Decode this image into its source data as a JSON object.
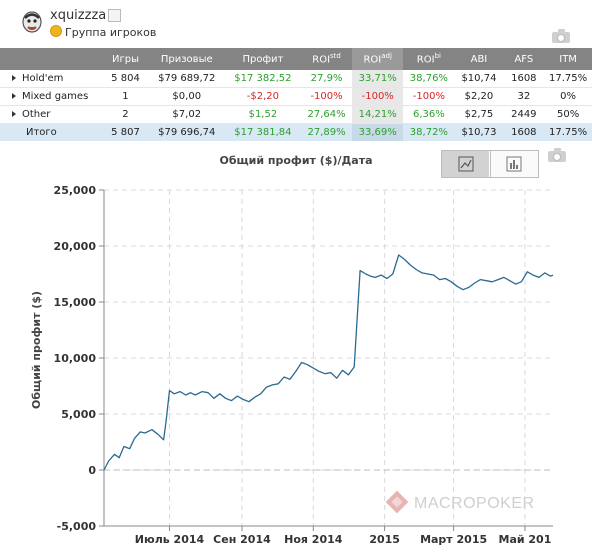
{
  "user": {
    "name": "xquizzza",
    "group_label": "Группа игроков"
  },
  "table": {
    "headers": [
      "",
      "Игры",
      "Призовые",
      "Профит",
      "ROI",
      "ROI",
      "ROI",
      "ABI",
      "AFS",
      "ITM"
    ],
    "roi_sups": [
      "std",
      "adj",
      "bi"
    ],
    "rows": [
      {
        "name": "Hold'em",
        "cells": [
          "5 804",
          "$79 689,72",
          "$17 382,52",
          "27,9%",
          "33,71%",
          "38,76%",
          "$10,74",
          "1608",
          "17.75%"
        ]
      },
      {
        "name": "Mixed games",
        "cells": [
          "1",
          "$0,00",
          "-$2,20",
          "-100%",
          "-100%",
          "-100%",
          "$2,20",
          "32",
          "0%"
        ]
      },
      {
        "name": "Other",
        "cells": [
          "2",
          "$7,02",
          "$1,52",
          "27,64%",
          "14,21%",
          "6,36%",
          "$2,75",
          "2449",
          "50%"
        ]
      }
    ],
    "total": {
      "name": "Итого",
      "cells": [
        "5 807",
        "$79 696,74",
        "$17 381,84",
        "27,89%",
        "33,69%",
        "38,72%",
        "$10,73",
        "1608",
        "17.75%"
      ]
    }
  },
  "colors": {
    "positive": "#2ca02c",
    "negative": "#d62728",
    "line": "#2b6a8f",
    "header_bg": "#848484"
  },
  "chart_data": {
    "type": "line",
    "title": "Общий профит ($)/Дата",
    "ylabel": "Общий профит ($)",
    "xlabel": "",
    "ylim": [
      -5000,
      25000
    ],
    "yticks": [
      "-5,000",
      "0",
      "5,000",
      "10,000",
      "15,000",
      "20,000",
      "25,000"
    ],
    "ytick_values": [
      -5000,
      0,
      5000,
      10000,
      15000,
      20000,
      25000
    ],
    "xticks": [
      "Июль 2014",
      "Сен 2014",
      "Ноя 2014",
      "2015",
      "Март 2015",
      "Май 201"
    ],
    "xtick_values": [
      "2014-07-01",
      "2014-09-01",
      "2014-11-01",
      "2015-01-01",
      "2015-03-01",
      "2015-05-01"
    ],
    "xlim": [
      "2014-05-06",
      "2015-05-25"
    ],
    "grid": true,
    "legend": "none",
    "series": [
      {
        "x": [
          "2014-05-06",
          "2014-05-10",
          "2014-05-15",
          "2014-05-19",
          "2014-05-23",
          "2014-05-28",
          "2014-06-01",
          "2014-06-06",
          "2014-06-10",
          "2014-06-16",
          "2014-06-21",
          "2014-06-26",
          "2014-06-28",
          "2014-07-01",
          "2014-07-05",
          "2014-07-10",
          "2014-07-15",
          "2014-07-19",
          "2014-07-23",
          "2014-07-29",
          "2014-08-03",
          "2014-08-08",
          "2014-08-13",
          "2014-08-18",
          "2014-08-23",
          "2014-08-28",
          "2014-09-02",
          "2014-09-07",
          "2014-09-12",
          "2014-09-17",
          "2014-09-22",
          "2014-09-27",
          "2014-10-02",
          "2014-10-07",
          "2014-10-12",
          "2014-10-17",
          "2014-10-22",
          "2014-10-27",
          "2014-11-01",
          "2014-11-06",
          "2014-11-11",
          "2014-11-16",
          "2014-11-21",
          "2014-11-26",
          "2014-12-01",
          "2014-12-06",
          "2014-12-11",
          "2014-12-16",
          "2014-12-20",
          "2014-12-24",
          "2014-12-29",
          "2015-01-03",
          "2015-01-08",
          "2015-01-13",
          "2015-01-18",
          "2015-01-23",
          "2015-01-28",
          "2015-02-02",
          "2015-02-07",
          "2015-02-12",
          "2015-02-17",
          "2015-02-22",
          "2015-02-27",
          "2015-03-04",
          "2015-03-09",
          "2015-03-14",
          "2015-03-19",
          "2015-03-24",
          "2015-03-29",
          "2015-04-03",
          "2015-04-08",
          "2015-04-13",
          "2015-04-18",
          "2015-04-23",
          "2015-04-28",
          "2015-05-03",
          "2015-05-08",
          "2015-05-13",
          "2015-05-18",
          "2015-05-23",
          "2015-05-25"
        ],
        "y": [
          0,
          800,
          1400,
          1100,
          2100,
          1900,
          2800,
          3400,
          3300,
          3600,
          3200,
          2700,
          4300,
          7100,
          6800,
          7000,
          6700,
          6900,
          6700,
          7000,
          6900,
          6400,
          6800,
          6400,
          6200,
          6600,
          6300,
          6100,
          6500,
          6800,
          7400,
          7600,
          7700,
          8300,
          8100,
          8800,
          9600,
          9400,
          9100,
          8800,
          8600,
          8700,
          8200,
          8900,
          8500,
          9200,
          17800,
          17500,
          17300,
          17200,
          17400,
          17100,
          17500,
          19200,
          18800,
          18300,
          17900,
          17600,
          17500,
          17400,
          17000,
          17100,
          16800,
          16400,
          16100,
          16300,
          16700,
          17000,
          16900,
          16800,
          17000,
          17200,
          16900,
          16600,
          16800,
          17700,
          17400,
          17200,
          17600,
          17300,
          17400
        ]
      }
    ]
  },
  "watermark": "MACROPOKER"
}
